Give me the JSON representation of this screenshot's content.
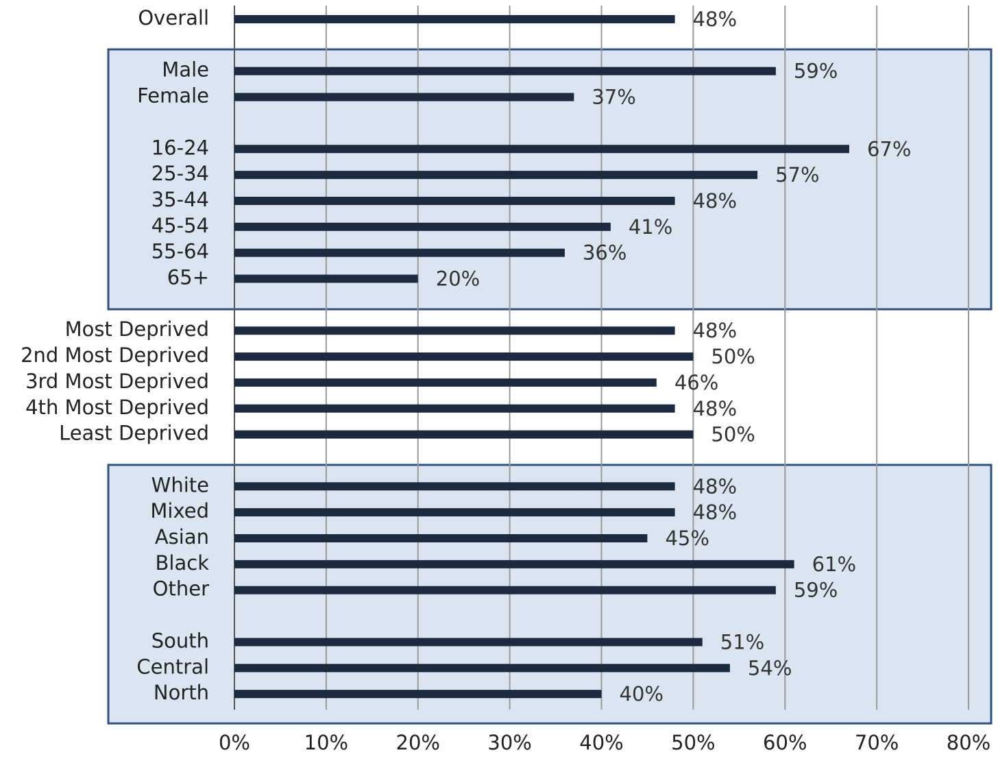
{
  "chart_data": {
    "type": "bar",
    "orientation": "horizontal",
    "categories": [
      "Overall",
      null,
      "Male",
      "Female",
      null,
      "16-24",
      "25-34",
      "35-44",
      "45-54",
      "55-64",
      "65+",
      null,
      "Most Deprived",
      "2nd Most Deprived",
      "3rd Most Deprived",
      "4th Most Deprived",
      "Least Deprived",
      null,
      "White",
      "Mixed",
      "Asian",
      "Black",
      "Other",
      null,
      "South",
      "Central",
      "North"
    ],
    "values": [
      48,
      null,
      59,
      37,
      null,
      67,
      57,
      48,
      41,
      36,
      20,
      null,
      48,
      50,
      46,
      48,
      50,
      null,
      48,
      48,
      45,
      61,
      59,
      null,
      51,
      54,
      40
    ],
    "value_labels": [
      "48%",
      null,
      "59%",
      "37%",
      null,
      "67%",
      "57%",
      "48%",
      "41%",
      "36%",
      "20%",
      null,
      "48%",
      "50%",
      "46%",
      "48%",
      "50%",
      null,
      "48%",
      "48%",
      "45%",
      "61%",
      "59%",
      null,
      "51%",
      "54%",
      "40%"
    ],
    "color": "#1c2a40",
    "xlim": [
      0,
      80
    ],
    "xticks": [
      {
        "value": 0,
        "label": "0%"
      },
      {
        "value": 10,
        "label": "10%"
      },
      {
        "value": 20,
        "label": "20%"
      },
      {
        "value": 30,
        "label": "30%"
      },
      {
        "value": 40,
        "label": "40%"
      },
      {
        "value": 50,
        "label": "50%"
      },
      {
        "value": 60,
        "label": "60%"
      },
      {
        "value": 70,
        "label": "70%"
      },
      {
        "value": 80,
        "label": "80%"
      }
    ],
    "grid": true
  }
}
